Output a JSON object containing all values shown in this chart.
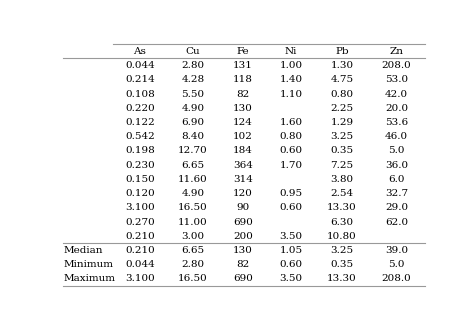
{
  "columns": [
    "",
    "As",
    "Cu",
    "Fe",
    "Ni",
    "Pb",
    "Zn"
  ],
  "rows": [
    [
      "",
      "0.044",
      "2.80",
      "131",
      "1.00",
      "1.30",
      "208.0"
    ],
    [
      "",
      "0.214",
      "4.28",
      "118",
      "1.40",
      "4.75",
      "53.0"
    ],
    [
      "",
      "0.108",
      "5.50",
      "82",
      "1.10",
      "0.80",
      "42.0"
    ],
    [
      "",
      "0.220",
      "4.90",
      "130",
      "",
      "2.25",
      "20.0"
    ],
    [
      "",
      "0.122",
      "6.90",
      "124",
      "1.60",
      "1.29",
      "53.6"
    ],
    [
      "",
      "0.542",
      "8.40",
      "102",
      "0.80",
      "3.25",
      "46.0"
    ],
    [
      "",
      "0.198",
      "12.70",
      "184",
      "0.60",
      "0.35",
      "5.0"
    ],
    [
      "",
      "0.230",
      "6.65",
      "364",
      "1.70",
      "7.25",
      "36.0"
    ],
    [
      "",
      "0.150",
      "11.60",
      "314",
      "",
      "3.80",
      "6.0"
    ],
    [
      "",
      "0.120",
      "4.90",
      "120",
      "0.95",
      "2.54",
      "32.7"
    ],
    [
      "",
      "3.100",
      "16.50",
      "90",
      "0.60",
      "13.30",
      "29.0"
    ],
    [
      "",
      "0.270",
      "11.00",
      "690",
      "",
      "6.30",
      "62.0"
    ],
    [
      "",
      "0.210",
      "3.00",
      "200",
      "3.50",
      "10.80",
      ""
    ],
    [
      "Median",
      "0.210",
      "6.65",
      "130",
      "1.05",
      "3.25",
      "39.0"
    ],
    [
      "Minimum",
      "0.044",
      "2.80",
      "82",
      "0.60",
      "0.35",
      "5.0"
    ],
    [
      "Maximum",
      "3.100",
      "16.50",
      "690",
      "3.50",
      "13.30",
      "208.0"
    ]
  ],
  "background_color": "#ffffff",
  "font_size": 7.5,
  "header_font_size": 7.5,
  "line_color": "#999999",
  "line_width": 0.8
}
